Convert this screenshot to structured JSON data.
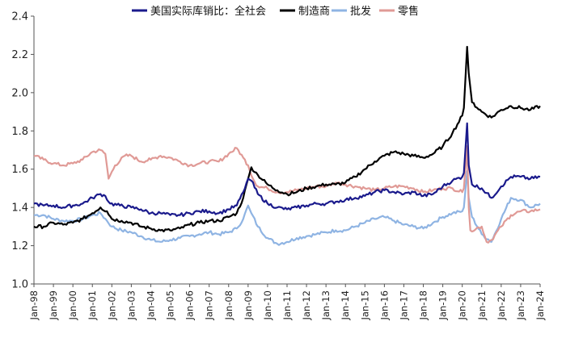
{
  "chart_data": {
    "type": "line",
    "title": "",
    "xlabel": "",
    "ylabel": "",
    "ylim": [
      1.0,
      2.4
    ],
    "yticks": [
      "1.0",
      "1.2",
      "1.4",
      "1.6",
      "1.8",
      "2.0",
      "2.2",
      "2.4"
    ],
    "xlim": [
      "1998-01",
      "2024-01"
    ],
    "xticks": [
      "Jan-98",
      "Jan-99",
      "Jan-00",
      "Jan-01",
      "Jan-02",
      "Jan-03",
      "Jan-04",
      "Jan-05",
      "Jan-06",
      "Jan-07",
      "Jan-08",
      "Jan-09",
      "Jan-10",
      "Jan-11",
      "Jan-12",
      "Jan-13",
      "Jan-14",
      "Jan-15",
      "Jan-16",
      "Jan-17",
      "Jan-18",
      "Jan-19",
      "Jan-20",
      "Jan-21",
      "Jan-22",
      "Jan-23",
      "Jan-24"
    ],
    "grid": false,
    "legend_position": "top",
    "series": [
      {
        "name": "美国实际库销比：全社会",
        "color": "#1a1a8c",
        "points": [
          [
            "1998-01",
            1.42
          ],
          [
            "1998-07",
            1.41
          ],
          [
            "1999-01",
            1.41
          ],
          [
            "1999-07",
            1.4
          ],
          [
            "2000-01",
            1.41
          ],
          [
            "2000-07",
            1.42
          ],
          [
            "2001-01",
            1.45
          ],
          [
            "2001-06",
            1.47
          ],
          [
            "2001-09",
            1.46
          ],
          [
            "2001-12",
            1.42
          ],
          [
            "2002-06",
            1.41
          ],
          [
            "2003-01",
            1.4
          ],
          [
            "2003-07",
            1.39
          ],
          [
            "2004-01",
            1.37
          ],
          [
            "2004-07",
            1.37
          ],
          [
            "2005-01",
            1.36
          ],
          [
            "2005-07",
            1.36
          ],
          [
            "2006-01",
            1.37
          ],
          [
            "2006-07",
            1.38
          ],
          [
            "2007-01",
            1.38
          ],
          [
            "2007-07",
            1.37
          ],
          [
            "2008-01",
            1.39
          ],
          [
            "2008-06",
            1.41
          ],
          [
            "2008-10",
            1.48
          ],
          [
            "2009-01",
            1.55
          ],
          [
            "2009-03",
            1.54
          ],
          [
            "2009-07",
            1.47
          ],
          [
            "2010-01",
            1.42
          ],
          [
            "2010-07",
            1.4
          ],
          [
            "2011-01",
            1.39
          ],
          [
            "2011-07",
            1.4
          ],
          [
            "2012-01",
            1.41
          ],
          [
            "2012-07",
            1.42
          ],
          [
            "2013-01",
            1.42
          ],
          [
            "2013-07",
            1.43
          ],
          [
            "2014-01",
            1.44
          ],
          [
            "2014-07",
            1.45
          ],
          [
            "2015-01",
            1.46
          ],
          [
            "2015-07",
            1.48
          ],
          [
            "2016-01",
            1.49
          ],
          [
            "2016-07",
            1.48
          ],
          [
            "2017-01",
            1.47
          ],
          [
            "2017-07",
            1.48
          ],
          [
            "2018-01",
            1.46
          ],
          [
            "2018-07",
            1.47
          ],
          [
            "2019-01",
            1.51
          ],
          [
            "2019-07",
            1.54
          ],
          [
            "2020-01",
            1.56
          ],
          [
            "2020-02",
            1.58
          ],
          [
            "2020-04",
            1.84
          ],
          [
            "2020-05",
            1.62
          ],
          [
            "2020-07",
            1.52
          ],
          [
            "2021-01",
            1.5
          ],
          [
            "2021-07",
            1.45
          ],
          [
            "2022-01",
            1.51
          ],
          [
            "2022-07",
            1.56
          ],
          [
            "2023-01",
            1.56
          ],
          [
            "2023-07",
            1.55
          ],
          [
            "2024-01",
            1.56
          ]
        ]
      },
      {
        "name": "制造商",
        "color": "#000000",
        "points": [
          [
            "1998-01",
            1.3
          ],
          [
            "1998-07",
            1.3
          ],
          [
            "1999-01",
            1.32
          ],
          [
            "1999-07",
            1.31
          ],
          [
            "2000-01",
            1.32
          ],
          [
            "2000-07",
            1.34
          ],
          [
            "2001-01",
            1.37
          ],
          [
            "2001-06",
            1.4
          ],
          [
            "2001-10",
            1.38
          ],
          [
            "2002-01",
            1.34
          ],
          [
            "2002-07",
            1.33
          ],
          [
            "2003-01",
            1.32
          ],
          [
            "2003-07",
            1.3
          ],
          [
            "2004-01",
            1.29
          ],
          [
            "2004-07",
            1.28
          ],
          [
            "2005-01",
            1.28
          ],
          [
            "2005-07",
            1.29
          ],
          [
            "2006-01",
            1.31
          ],
          [
            "2006-07",
            1.32
          ],
          [
            "2007-01",
            1.33
          ],
          [
            "2007-07",
            1.33
          ],
          [
            "2008-01",
            1.35
          ],
          [
            "2008-06",
            1.37
          ],
          [
            "2008-10",
            1.45
          ],
          [
            "2009-01",
            1.55
          ],
          [
            "2009-03",
            1.61
          ],
          [
            "2009-07",
            1.57
          ],
          [
            "2010-01",
            1.52
          ],
          [
            "2010-07",
            1.49
          ],
          [
            "2011-01",
            1.47
          ],
          [
            "2011-07",
            1.48
          ],
          [
            "2012-01",
            1.5
          ],
          [
            "2012-07",
            1.51
          ],
          [
            "2013-01",
            1.52
          ],
          [
            "2013-07",
            1.52
          ],
          [
            "2014-01",
            1.53
          ],
          [
            "2014-07",
            1.56
          ],
          [
            "2015-01",
            1.6
          ],
          [
            "2015-07",
            1.64
          ],
          [
            "2016-01",
            1.67
          ],
          [
            "2016-07",
            1.69
          ],
          [
            "2017-01",
            1.68
          ],
          [
            "2017-07",
            1.67
          ],
          [
            "2018-01",
            1.66
          ],
          [
            "2018-07",
            1.68
          ],
          [
            "2019-01",
            1.72
          ],
          [
            "2019-07",
            1.79
          ],
          [
            "2020-01",
            1.88
          ],
          [
            "2020-02",
            1.92
          ],
          [
            "2020-04",
            2.24
          ],
          [
            "2020-05",
            2.1
          ],
          [
            "2020-07",
            1.95
          ],
          [
            "2021-01",
            1.9
          ],
          [
            "2021-07",
            1.87
          ],
          [
            "2022-01",
            1.91
          ],
          [
            "2022-07",
            1.93
          ],
          [
            "2023-01",
            1.92
          ],
          [
            "2023-07",
            1.91
          ],
          [
            "2024-01",
            1.93
          ]
        ]
      },
      {
        "name": "批发",
        "color": "#8fb4e3",
        "points": [
          [
            "1998-01",
            1.36
          ],
          [
            "1998-07",
            1.36
          ],
          [
            "1999-01",
            1.34
          ],
          [
            "1999-07",
            1.33
          ],
          [
            "2000-01",
            1.33
          ],
          [
            "2000-07",
            1.34
          ],
          [
            "2001-01",
            1.36
          ],
          [
            "2001-06",
            1.37
          ],
          [
            "2001-10",
            1.33
          ],
          [
            "2002-01",
            1.3
          ],
          [
            "2002-07",
            1.28
          ],
          [
            "2003-01",
            1.27
          ],
          [
            "2003-07",
            1.25
          ],
          [
            "2004-01",
            1.23
          ],
          [
            "2004-07",
            1.22
          ],
          [
            "2005-01",
            1.23
          ],
          [
            "2005-07",
            1.24
          ],
          [
            "2006-01",
            1.25
          ],
          [
            "2006-07",
            1.26
          ],
          [
            "2007-01",
            1.27
          ],
          [
            "2007-07",
            1.26
          ],
          [
            "2008-01",
            1.27
          ],
          [
            "2008-06",
            1.29
          ],
          [
            "2008-10",
            1.34
          ],
          [
            "2009-01",
            1.41
          ],
          [
            "2009-03",
            1.37
          ],
          [
            "2009-07",
            1.3
          ],
          [
            "2010-01",
            1.24
          ],
          [
            "2010-07",
            1.21
          ],
          [
            "2011-01",
            1.22
          ],
          [
            "2011-07",
            1.24
          ],
          [
            "2012-01",
            1.25
          ],
          [
            "2012-07",
            1.26
          ],
          [
            "2013-01",
            1.27
          ],
          [
            "2013-07",
            1.28
          ],
          [
            "2014-01",
            1.28
          ],
          [
            "2014-07",
            1.3
          ],
          [
            "2015-01",
            1.32
          ],
          [
            "2015-07",
            1.34
          ],
          [
            "2016-01",
            1.35
          ],
          [
            "2016-07",
            1.33
          ],
          [
            "2017-01",
            1.31
          ],
          [
            "2017-07",
            1.3
          ],
          [
            "2018-01",
            1.29
          ],
          [
            "2018-07",
            1.32
          ],
          [
            "2019-01",
            1.35
          ],
          [
            "2019-07",
            1.37
          ],
          [
            "2020-01",
            1.38
          ],
          [
            "2020-02",
            1.4
          ],
          [
            "2020-04",
            1.59
          ],
          [
            "2020-05",
            1.45
          ],
          [
            "2020-07",
            1.35
          ],
          [
            "2021-01",
            1.26
          ],
          [
            "2021-07",
            1.22
          ],
          [
            "2022-01",
            1.34
          ],
          [
            "2022-07",
            1.45
          ],
          [
            "2023-01",
            1.44
          ],
          [
            "2023-07",
            1.4
          ],
          [
            "2024-01",
            1.42
          ]
        ]
      },
      {
        "name": "零售",
        "color": "#e09a96",
        "points": [
          [
            "1998-01",
            1.67
          ],
          [
            "1998-07",
            1.65
          ],
          [
            "1999-01",
            1.63
          ],
          [
            "1999-07",
            1.62
          ],
          [
            "2000-01",
            1.63
          ],
          [
            "2000-07",
            1.65
          ],
          [
            "2001-01",
            1.69
          ],
          [
            "2001-06",
            1.7
          ],
          [
            "2001-09",
            1.68
          ],
          [
            "2001-11",
            1.55
          ],
          [
            "2002-03",
            1.62
          ],
          [
            "2002-09",
            1.67
          ],
          [
            "2003-01",
            1.67
          ],
          [
            "2003-07",
            1.64
          ],
          [
            "2004-01",
            1.65
          ],
          [
            "2004-07",
            1.67
          ],
          [
            "2005-01",
            1.66
          ],
          [
            "2005-07",
            1.64
          ],
          [
            "2006-01",
            1.62
          ],
          [
            "2006-07",
            1.63
          ],
          [
            "2007-01",
            1.64
          ],
          [
            "2007-07",
            1.64
          ],
          [
            "2008-01",
            1.68
          ],
          [
            "2008-06",
            1.71
          ],
          [
            "2008-10",
            1.66
          ],
          [
            "2009-01",
            1.62
          ],
          [
            "2009-04",
            1.55
          ],
          [
            "2009-07",
            1.51
          ],
          [
            "2010-01",
            1.5
          ],
          [
            "2010-07",
            1.48
          ],
          [
            "2011-01",
            1.48
          ],
          [
            "2011-07",
            1.49
          ],
          [
            "2012-01",
            1.5
          ],
          [
            "2012-07",
            1.51
          ],
          [
            "2013-01",
            1.51
          ],
          [
            "2013-07",
            1.53
          ],
          [
            "2014-01",
            1.52
          ],
          [
            "2014-07",
            1.51
          ],
          [
            "2015-01",
            1.5
          ],
          [
            "2015-07",
            1.49
          ],
          [
            "2016-01",
            1.5
          ],
          [
            "2016-07",
            1.51
          ],
          [
            "2017-01",
            1.51
          ],
          [
            "2017-07",
            1.5
          ],
          [
            "2018-01",
            1.48
          ],
          [
            "2018-07",
            1.49
          ],
          [
            "2019-01",
            1.5
          ],
          [
            "2019-07",
            1.5
          ],
          [
            "2020-01",
            1.48
          ],
          [
            "2020-02",
            1.5
          ],
          [
            "2020-04",
            1.72
          ],
          [
            "2020-05",
            1.4
          ],
          [
            "2020-06",
            1.28
          ],
          [
            "2021-01",
            1.3
          ],
          [
            "2021-04",
            1.22
          ],
          [
            "2021-07",
            1.23
          ],
          [
            "2022-01",
            1.3
          ],
          [
            "2022-07",
            1.36
          ],
          [
            "2023-01",
            1.38
          ],
          [
            "2023-07",
            1.38
          ],
          [
            "2024-01",
            1.39
          ]
        ]
      }
    ]
  }
}
